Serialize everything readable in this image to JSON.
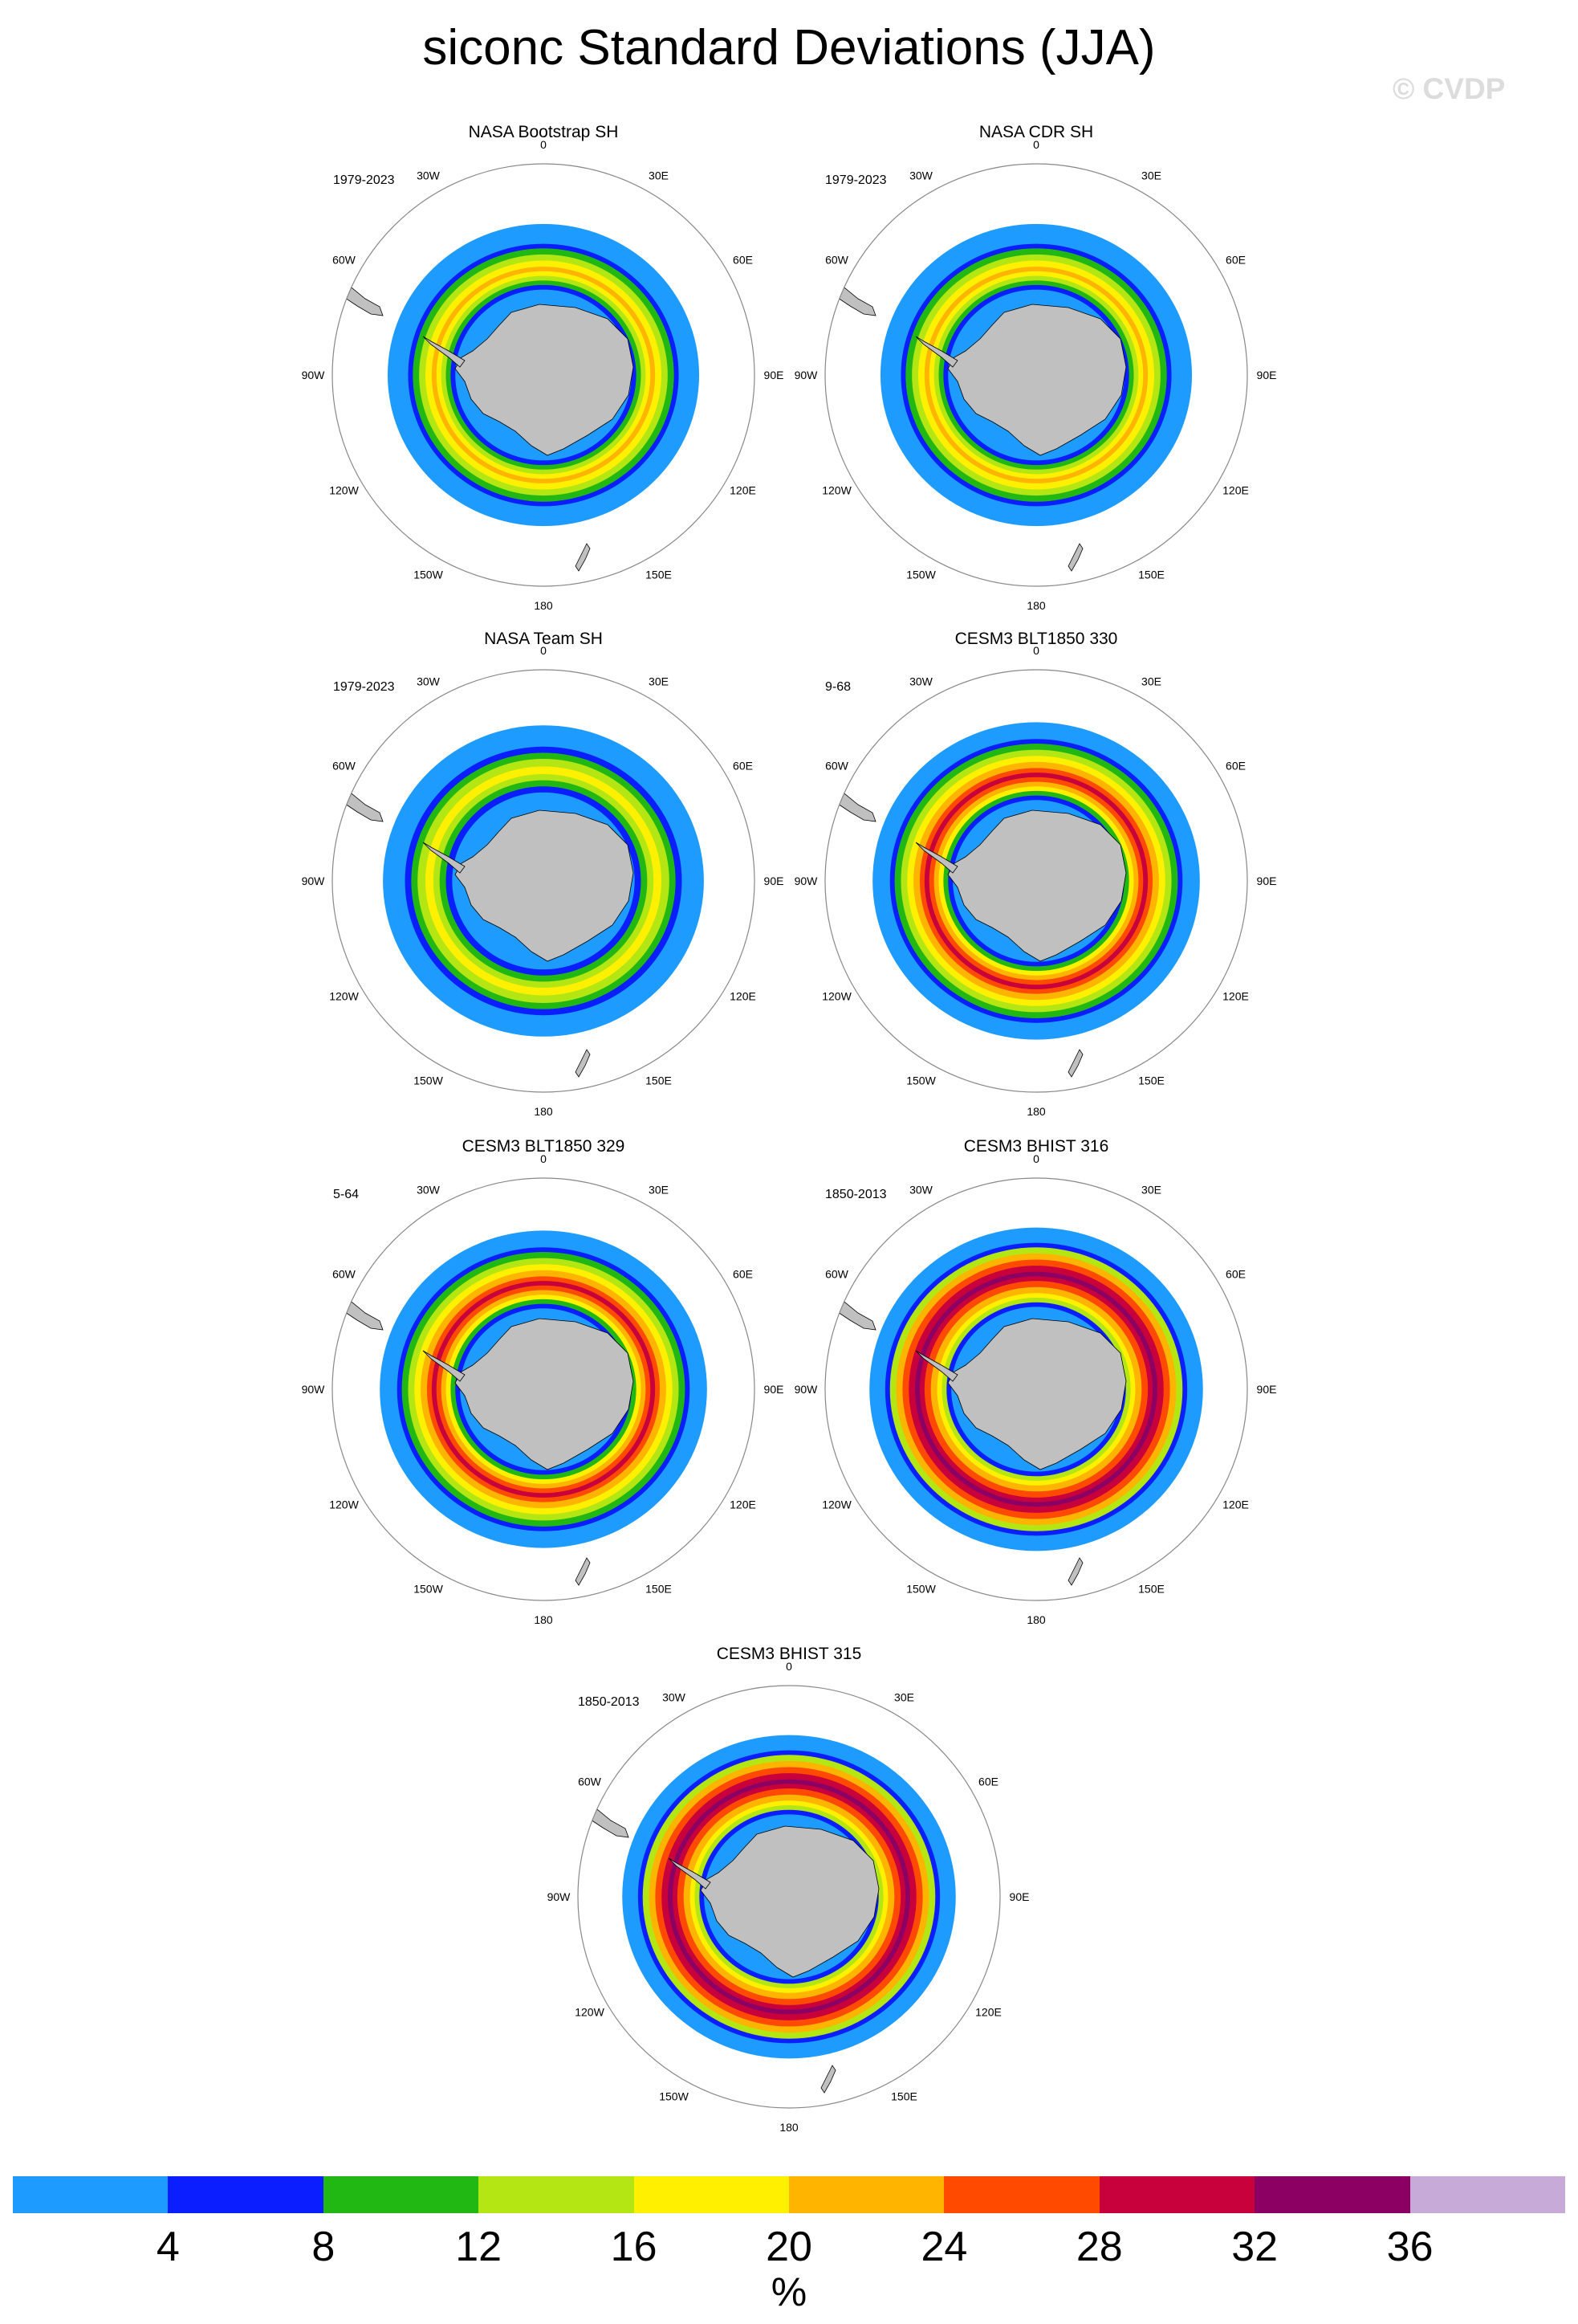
{
  "title": "siconc Standard Deviations (JJA)",
  "watermark": "© CVDP",
  "panels": [
    {
      "title": "NASA Bootstrap SH",
      "period": "1979-2023",
      "pattern": "obs"
    },
    {
      "title": "NASA CDR SH",
      "period": "1979-2023",
      "pattern": "obs"
    },
    {
      "title": "NASA Team SH",
      "period": "1979-2023",
      "pattern": "team"
    },
    {
      "title": "CESM3 BLT1850 330",
      "period": "9-68",
      "pattern": "model"
    },
    {
      "title": "CESM3 BLT1850 329",
      "period": "5-64",
      "pattern": "model"
    },
    {
      "title": "CESM3 BHIST 316",
      "period": "1850-2013",
      "pattern": "model_high"
    },
    {
      "title": "CESM3 BHIST 315",
      "period": "1850-2013",
      "pattern": "model_high"
    }
  ],
  "map_labels": {
    "lon_0": "0",
    "lon_30E": "30E",
    "lon_60E": "60E",
    "lon_90E": "90E",
    "lon_120E": "120E",
    "lon_150E": "150E",
    "lon_180": "180",
    "lon_150W": "150W",
    "lon_120W": "120W",
    "lon_90W": "90W",
    "lon_60W": "60W",
    "lon_30W": "30W"
  },
  "colors": {
    "land": "#c0c0c0",
    "levels": [
      "#1e9bff",
      "#0a1eff",
      "#22b814",
      "#b4e614",
      "#fff000",
      "#ffb400",
      "#ff4a00",
      "#c8003c",
      "#8c0064",
      "#c8aad8"
    ]
  },
  "legend": {
    "ticks": [
      "4",
      "8",
      "12",
      "16",
      "20",
      "24",
      "28",
      "32",
      "36"
    ],
    "units": "%"
  },
  "chart_data": {
    "type": "heatmap",
    "title": "siconc Standard Deviations (JJA)",
    "units": "%",
    "contour_levels": [
      4,
      8,
      12,
      16,
      20,
      24,
      28,
      32,
      36
    ],
    "panels": [
      {
        "name": "NASA Bootstrap SH",
        "period": "1979-2023",
        "max_std_approx": 28
      },
      {
        "name": "NASA CDR SH",
        "period": "1979-2023",
        "max_std_approx": 28
      },
      {
        "name": "NASA Team SH",
        "period": "1979-2023",
        "max_std_approx": 20
      },
      {
        "name": "CESM3 BLT1850 330",
        "period": "9-68",
        "max_std_approx": 32
      },
      {
        "name": "CESM3 BLT1850 329",
        "period": "5-64",
        "max_std_approx": 32
      },
      {
        "name": "CESM3 BHIST 316",
        "period": "1850-2013",
        "max_std_approx": 36
      },
      {
        "name": "CESM3 BHIST 315",
        "period": "1850-2013",
        "max_std_approx": 36
      }
    ]
  }
}
